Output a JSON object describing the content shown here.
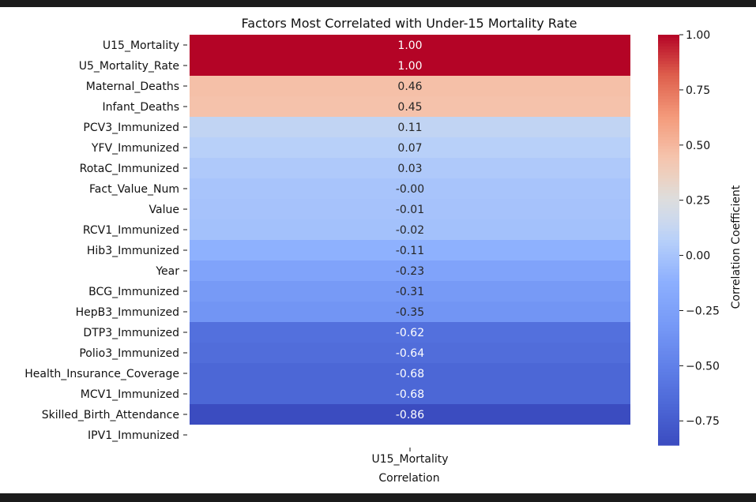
{
  "chart_data": {
    "type": "heatmap",
    "title": "Factors Most Correlated with Under-15 Mortality Rate",
    "xlabel": "Correlation",
    "x_categories": [
      "U15_Mortality"
    ],
    "y_categories": [
      "U15_Mortality",
      "U5_Mortality_Rate",
      "Maternal_Deaths",
      "Infant_Deaths",
      "PCV3_Immunized",
      "YFV_Immunized",
      "RotaC_Immunized",
      "Fact_Value_Num",
      "Value",
      "RCV1_Immunized",
      "Hib3_Immunized",
      "Year",
      "BCG_Immunized",
      "HepB3_Immunized",
      "DTP3_Immunized",
      "Polio3_Immunized",
      "Health_Insurance_Coverage",
      "MCV1_Immunized",
      "Skilled_Birth_Attendance",
      "IPV1_Immunized"
    ],
    "values": [
      1.0,
      1.0,
      0.46,
      0.45,
      0.11,
      0.07,
      0.03,
      -0.0,
      -0.01,
      -0.02,
      -0.11,
      -0.23,
      -0.31,
      -0.35,
      -0.62,
      -0.64,
      -0.68,
      -0.68,
      -0.86,
      null
    ],
    "value_labels": [
      "1.00",
      "1.00",
      "0.46",
      "0.45",
      "0.11",
      "0.07",
      "0.03",
      "-0.00",
      "-0.01",
      "-0.02",
      "-0.11",
      "-0.23",
      "-0.31",
      "-0.35",
      "-0.62",
      "-0.64",
      "-0.68",
      "-0.68",
      "-0.86",
      ""
    ],
    "colormap": "coolwarm",
    "colorbar": {
      "label": "Correlation Coefficient",
      "range": [
        -0.86,
        1.0
      ],
      "ticks": [
        1.0,
        0.75,
        0.5,
        0.25,
        0.0,
        -0.25,
        -0.5,
        -0.75
      ],
      "tick_labels": [
        "1.00",
        "0.75",
        "0.50",
        "0.25",
        "0.00",
        "−0.25",
        "−0.50",
        "−0.75"
      ]
    }
  }
}
